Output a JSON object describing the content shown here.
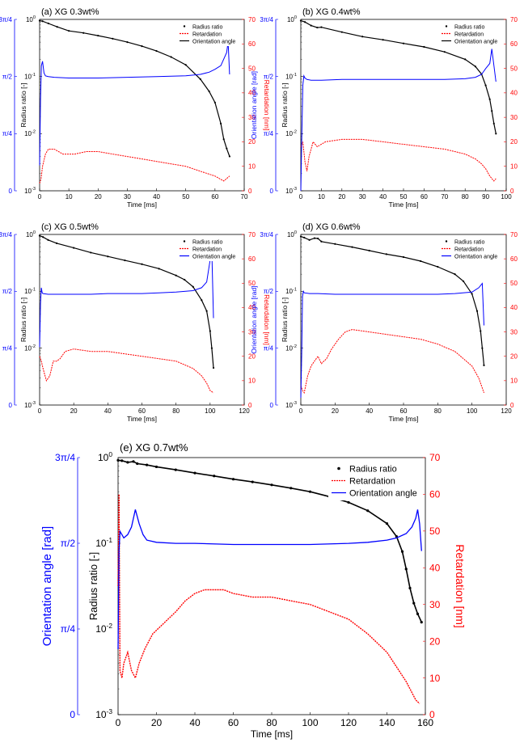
{
  "figure": {
    "colors": {
      "radius": "#000000",
      "retardation": "#ff0000",
      "orientation": "#0000ff",
      "axis": "#000000"
    },
    "left_ylabel": "Orientation angle [rad]",
    "ylabel": "Radius ratio [-]",
    "right_ylabel": "Retardation [nm]",
    "xlabel": "Time [ms]",
    "legend": [
      "Radius ratio",
      "Retardation",
      "Orientation angle"
    ],
    "left_ticks": [
      "0",
      "π/4",
      "π/2",
      "3π/4"
    ],
    "log_ticks": [
      "10",
      "10",
      "10",
      "10"
    ],
    "log_exps": [
      "-3",
      "-2",
      "-1",
      "0"
    ],
    "ret_ticks": [
      "0",
      "10",
      "20",
      "30",
      "40",
      "50",
      "60",
      "70"
    ]
  },
  "chart_data": [
    {
      "type": "line",
      "title": "(a) XG 0.3wt%",
      "xlabel": "Time [ms]",
      "ylabel": "Radius ratio [-]",
      "xlim": [
        0,
        70
      ],
      "xticks": [
        "0",
        "10",
        "20",
        "30",
        "40",
        "50",
        "60",
        "70"
      ],
      "ylim_log": [
        0.001,
        1
      ],
      "ylim_ret": [
        0,
        70
      ],
      "series": [
        {
          "name": "Radius ratio",
          "axis": "log",
          "style": "dots",
          "x": [
            0,
            1,
            3,
            6,
            10,
            15,
            20,
            25,
            30,
            35,
            40,
            45,
            50,
            55,
            58,
            60,
            62,
            63,
            64,
            65
          ],
          "y": [
            0.95,
            0.93,
            0.85,
            0.74,
            0.63,
            0.58,
            0.52,
            0.46,
            0.4,
            0.34,
            0.28,
            0.22,
            0.16,
            0.09,
            0.055,
            0.035,
            0.015,
            0.008,
            0.0055,
            0.004
          ]
        },
        {
          "name": "Retardation",
          "axis": "ret",
          "style": "dashed",
          "x": [
            0,
            0.5,
            1,
            2,
            3,
            5,
            8,
            12,
            16,
            20,
            25,
            30,
            35,
            40,
            45,
            50,
            55,
            60,
            63,
            65
          ],
          "y": [
            3,
            5,
            10,
            15,
            17,
            17,
            15,
            15,
            16,
            16,
            15,
            14,
            13,
            12,
            11,
            10,
            8,
            6,
            4,
            6
          ]
        },
        {
          "name": "Orientation angle",
          "axis": "ori",
          "style": "solid",
          "x": [
            0,
            0.3,
            0.6,
            1,
            1.5,
            2,
            3,
            5,
            10,
            20,
            30,
            40,
            50,
            55,
            58,
            60,
            62,
            64,
            64.5,
            65
          ],
          "y": [
            0.35,
            1.25,
            1.72,
            1.78,
            1.62,
            1.58,
            1.57,
            1.56,
            1.55,
            1.55,
            1.56,
            1.57,
            1.58,
            1.6,
            1.63,
            1.67,
            1.72,
            1.9,
            2.05,
            1.6
          ]
        }
      ]
    },
    {
      "type": "line",
      "title": "(b) XG 0.4wt%",
      "xlabel": "Time [ms]",
      "ylabel": "Radius ratio [-]",
      "xlim": [
        0,
        100
      ],
      "xticks": [
        "0",
        "10",
        "20",
        "30",
        "40",
        "50",
        "60",
        "70",
        "80",
        "90",
        "100"
      ],
      "ylim_log": [
        0.001,
        1
      ],
      "ylim_ret": [
        0,
        70
      ],
      "series": [
        {
          "name": "Radius ratio",
          "axis": "log",
          "style": "dots",
          "x": [
            0,
            2,
            5,
            8,
            10,
            20,
            30,
            40,
            50,
            60,
            70,
            80,
            85,
            88,
            90,
            92,
            93,
            94,
            95
          ],
          "y": [
            0.95,
            0.9,
            0.78,
            0.72,
            0.73,
            0.6,
            0.5,
            0.44,
            0.38,
            0.33,
            0.27,
            0.2,
            0.15,
            0.11,
            0.07,
            0.04,
            0.025,
            0.015,
            0.01
          ]
        },
        {
          "name": "Retardation",
          "axis": "ret",
          "style": "dashed",
          "x": [
            0,
            1,
            2,
            3,
            4,
            6,
            8,
            12,
            20,
            30,
            40,
            50,
            60,
            70,
            75,
            80,
            85,
            88,
            90,
            92,
            94,
            95
          ],
          "y": [
            18,
            20,
            12,
            8,
            14,
            20,
            18,
            20,
            21,
            21,
            20,
            19,
            18,
            17,
            16,
            15,
            13,
            11,
            9,
            6,
            4,
            5
          ]
        },
        {
          "name": "Orientation angle",
          "axis": "ori",
          "style": "solid",
          "x": [
            0,
            0.5,
            1,
            1.5,
            2,
            3,
            5,
            10,
            20,
            30,
            40,
            50,
            60,
            70,
            80,
            85,
            88,
            90,
            92,
            93,
            95
          ],
          "y": [
            0.0,
            0.8,
            1.45,
            1.58,
            1.55,
            1.53,
            1.52,
            1.52,
            1.53,
            1.53,
            1.53,
            1.53,
            1.53,
            1.53,
            1.54,
            1.56,
            1.6,
            1.68,
            1.75,
            1.95,
            1.5
          ]
        }
      ]
    },
    {
      "type": "line",
      "title": "(c) XG 0.5wt%",
      "xlabel": "Time [ms]",
      "ylabel": "Radius ratio [-]",
      "xlim": [
        0,
        120
      ],
      "xticks": [
        "0",
        "20",
        "40",
        "60",
        "80",
        "100",
        "120"
      ],
      "ylim_log": [
        0.001,
        1
      ],
      "ylim_ret": [
        0,
        70
      ],
      "series": [
        {
          "name": "Radius ratio",
          "axis": "log",
          "style": "dots",
          "x": [
            0,
            2,
            5,
            10,
            20,
            30,
            40,
            50,
            60,
            70,
            80,
            85,
            90,
            95,
            98,
            100,
            101,
            102
          ],
          "y": [
            0.95,
            0.9,
            0.8,
            0.7,
            0.58,
            0.48,
            0.41,
            0.35,
            0.3,
            0.25,
            0.19,
            0.16,
            0.12,
            0.07,
            0.045,
            0.02,
            0.01,
            0.0045
          ]
        },
        {
          "name": "Retardation",
          "axis": "ret",
          "style": "dashed",
          "x": [
            0,
            1,
            2,
            4,
            6,
            8,
            10,
            12,
            15,
            20,
            30,
            40,
            50,
            60,
            70,
            80,
            90,
            95,
            98,
            100,
            102
          ],
          "y": [
            20,
            18,
            15,
            10,
            12,
            18,
            18,
            19,
            22,
            23,
            22,
            22,
            21,
            20,
            19,
            18,
            15,
            12,
            9,
            6,
            5
          ]
        },
        {
          "name": "Orientation angle",
          "axis": "ori",
          "style": "solid",
          "x": [
            0,
            0.5,
            1,
            1.5,
            2,
            5,
            10,
            20,
            30,
            40,
            50,
            60,
            70,
            80,
            90,
            95,
            98,
            100,
            101,
            102
          ],
          "y": [
            0.8,
            1.4,
            1.62,
            1.55,
            1.54,
            1.53,
            1.53,
            1.53,
            1.53,
            1.54,
            1.54,
            1.54,
            1.55,
            1.56,
            1.58,
            1.62,
            1.7,
            2.0,
            2.15,
            1.2
          ]
        }
      ]
    },
    {
      "type": "line",
      "title": "(d) XG 0.6wt%",
      "xlabel": "Time [ms]",
      "ylabel": "Radius ratio [-]",
      "xlim": [
        0,
        120
      ],
      "xticks": [
        "0",
        "20",
        "40",
        "60",
        "80",
        "100",
        "120"
      ],
      "ylim_log": [
        0.001,
        1
      ],
      "ylim_ret": [
        0,
        70
      ],
      "series": [
        {
          "name": "Radius ratio",
          "axis": "log",
          "style": "dots",
          "x": [
            0,
            2,
            5,
            8,
            10,
            12,
            20,
            30,
            40,
            50,
            60,
            70,
            80,
            90,
            95,
            100,
            103,
            105,
            106,
            107
          ],
          "y": [
            0.92,
            0.88,
            0.8,
            0.86,
            0.85,
            0.75,
            0.68,
            0.6,
            0.52,
            0.45,
            0.4,
            0.34,
            0.27,
            0.2,
            0.15,
            0.09,
            0.045,
            0.02,
            0.01,
            0.005
          ]
        },
        {
          "name": "Retardation",
          "axis": "ret",
          "style": "dashed",
          "x": [
            0,
            1,
            2,
            4,
            6,
            8,
            10,
            12,
            15,
            18,
            22,
            26,
            30,
            40,
            50,
            60,
            70,
            80,
            90,
            95,
            100,
            104,
            107
          ],
          "y": [
            8,
            6,
            5,
            12,
            16,
            18,
            20,
            17,
            19,
            23,
            27,
            30,
            31,
            30,
            29,
            28,
            27,
            25,
            22,
            19,
            16,
            11,
            5
          ]
        },
        {
          "name": "Orientation angle",
          "axis": "ori",
          "style": "solid",
          "x": [
            0,
            0.5,
            1,
            1.5,
            2,
            5,
            10,
            20,
            30,
            40,
            50,
            60,
            70,
            80,
            90,
            100,
            104,
            106,
            107
          ],
          "y": [
            0.1,
            0.7,
            1.5,
            1.57,
            1.55,
            1.54,
            1.54,
            1.53,
            1.53,
            1.53,
            1.53,
            1.53,
            1.53,
            1.53,
            1.54,
            1.56,
            1.62,
            1.68,
            1.1
          ]
        }
      ]
    },
    {
      "type": "line",
      "title": "(e) XG 0.7wt%",
      "xlabel": "Time [ms]",
      "ylabel": "Radius ratio [-]",
      "xlim": [
        0,
        160
      ],
      "xticks": [
        "0",
        "20",
        "40",
        "60",
        "80",
        "100",
        "120",
        "140",
        "160"
      ],
      "ylim_log": [
        0.001,
        1
      ],
      "ylim_ret": [
        0,
        70
      ],
      "series": [
        {
          "name": "Radius ratio",
          "axis": "log",
          "style": "dots",
          "x": [
            0,
            2,
            5,
            8,
            10,
            15,
            20,
            30,
            40,
            50,
            60,
            70,
            80,
            90,
            100,
            110,
            120,
            130,
            140,
            145,
            148,
            150,
            152,
            154,
            156,
            158
          ],
          "y": [
            0.93,
            0.92,
            0.88,
            0.9,
            0.85,
            0.82,
            0.78,
            0.72,
            0.66,
            0.61,
            0.56,
            0.52,
            0.48,
            0.44,
            0.4,
            0.35,
            0.3,
            0.24,
            0.17,
            0.12,
            0.08,
            0.05,
            0.03,
            0.02,
            0.015,
            0.012
          ]
        },
        {
          "name": "Retardation",
          "axis": "ret",
          "style": "dashed",
          "x": [
            0,
            0.5,
            1,
            2,
            3,
            5,
            7,
            9,
            11,
            14,
            18,
            22,
            26,
            30,
            35,
            40,
            45,
            50,
            55,
            60,
            70,
            80,
            90,
            100,
            110,
            120,
            130,
            140,
            145,
            150,
            153,
            155,
            157
          ],
          "y": [
            35,
            60,
            12,
            10,
            14,
            17,
            12,
            10,
            14,
            18,
            22,
            24,
            26,
            28,
            31,
            33,
            34,
            34,
            34,
            33,
            32,
            32,
            31,
            30,
            28,
            26,
            22,
            17,
            13,
            9,
            6,
            4,
            3
          ]
        },
        {
          "name": "Orientation angle",
          "axis": "ori",
          "style": "solid",
          "x": [
            0,
            0.5,
            1,
            2,
            3,
            5,
            7,
            9,
            11,
            13,
            15,
            20,
            30,
            40,
            60,
            80,
            100,
            120,
            130,
            140,
            145,
            150,
            153,
            155,
            156,
            157,
            158
          ],
          "y": [
            0.6,
            1.5,
            1.68,
            1.65,
            1.62,
            1.65,
            1.72,
            1.88,
            1.75,
            1.65,
            1.6,
            1.58,
            1.57,
            1.57,
            1.56,
            1.56,
            1.56,
            1.57,
            1.58,
            1.6,
            1.62,
            1.66,
            1.72,
            1.8,
            1.88,
            1.75,
            1.5
          ]
        }
      ]
    }
  ]
}
